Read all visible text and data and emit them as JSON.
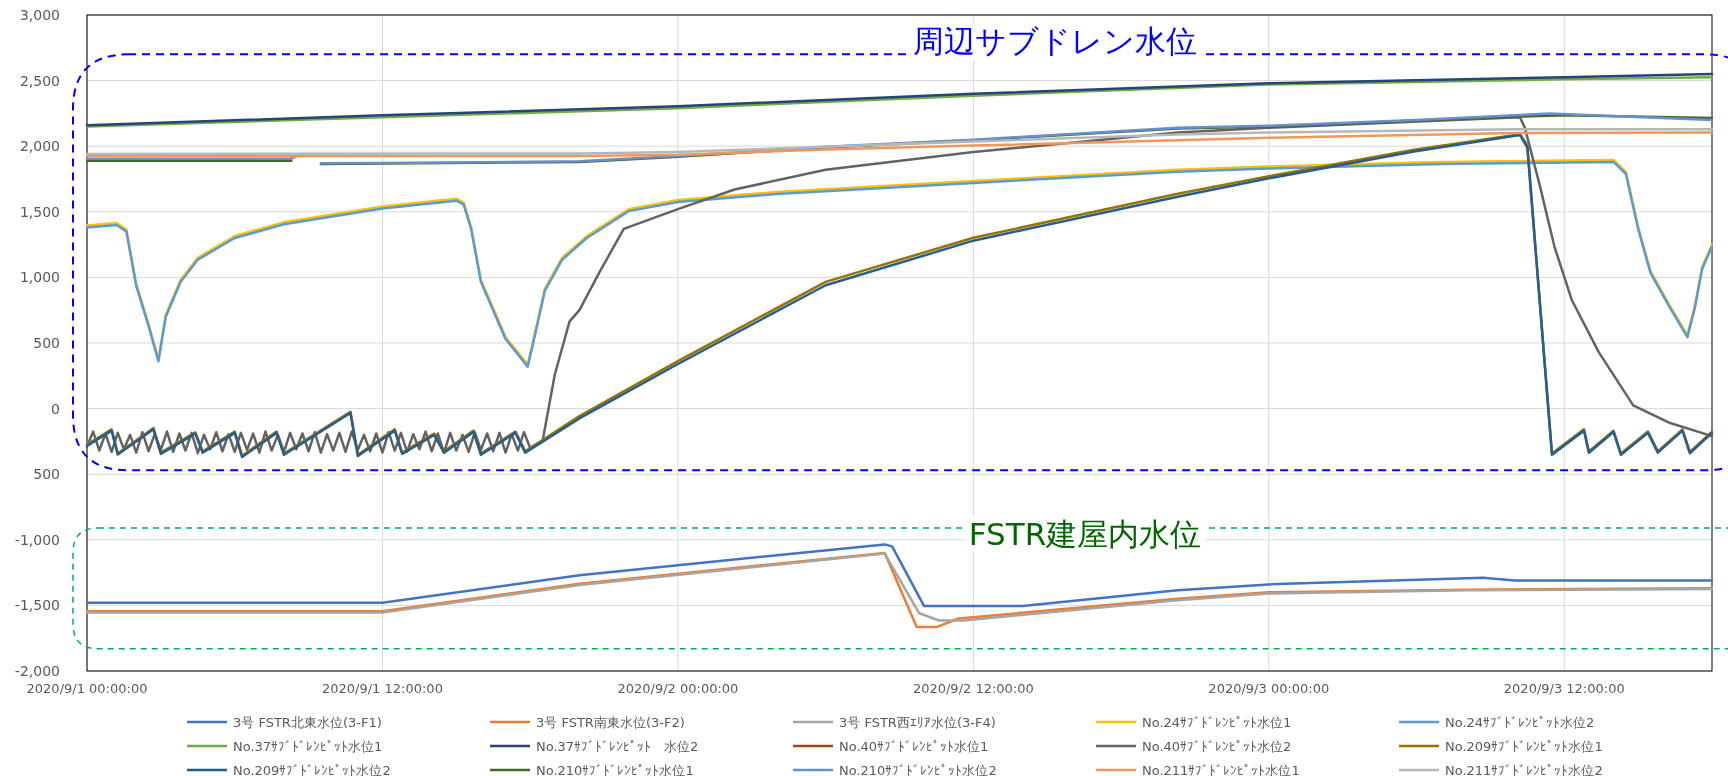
{
  "chart_data": {
    "type": "line",
    "xlim": [
      "2020-09-01T00:00",
      "2020-09-03T18:00"
    ],
    "ylim": [
      -2000,
      3000
    ],
    "xticks": [
      {
        "value": "2020-09-01T00:00",
        "label": "2020/9/1 00:00:00"
      },
      {
        "value": "2020-09-01T12:00",
        "label": "2020/9/1 12:00:00"
      },
      {
        "value": "2020-09-02T00:00",
        "label": "2020/9/2 00:00:00"
      },
      {
        "value": "2020-09-02T12:00",
        "label": "2020/9/2 12:00:00"
      },
      {
        "value": "2020-09-03T00:00",
        "label": "2020/9/3 00:00:00"
      },
      {
        "value": "2020-09-03T12:00",
        "label": "2020/9/3 12:00:00"
      }
    ],
    "yticks": [
      {
        "value": 3000,
        "label": "3,000"
      },
      {
        "value": 2500,
        "label": "2,500"
      },
      {
        "value": 2000,
        "label": "2,000"
      },
      {
        "value": 1500,
        "label": "1,500"
      },
      {
        "value": 1000,
        "label": "1,000"
      },
      {
        "value": 500,
        "label": "500"
      },
      0,
      {
        "value": -500,
        "label": "500"
      },
      {
        "value": -1000,
        "label": "-1,000"
      },
      {
        "value": -1500,
        "label": "-1,500"
      },
      {
        "value": -2000,
        "label": "-2,000"
      }
    ],
    "grid": true,
    "legend": "bottom",
    "annotations": [
      "周辺サブドレン水位",
      "FSTR建屋内水位"
    ],
    "series": [
      {
        "name": "3号 FSTR北東水位(3-F1)",
        "color": "#4472c4",
        "x": [
          "2020-09-01T00:00",
          "2020-09-01T12:00",
          "2020-09-01T20:00",
          "2020-09-02T08:24",
          "2020-09-02T08:42",
          "2020-09-02T10:00",
          "2020-09-02T14:00",
          "2020-09-02T20:18",
          "2020-09-03T00:00",
          "2020-09-03T08:42",
          "2020-09-03T10:00",
          "2020-09-03T18:00"
        ],
        "values": [
          -1480,
          -1480,
          -1270,
          -1035,
          -1050,
          -1505,
          -1505,
          -1385,
          -1340,
          -1290,
          -1310,
          -1310
        ]
      },
      {
        "name": "3号 FSTR南東水位(3-F2)",
        "color": "#ed7d31",
        "x": [
          "2020-09-01T00:00",
          "2020-09-01T12:00",
          "2020-09-01T20:00",
          "2020-09-02T08:24",
          "2020-09-02T09:42",
          "2020-09-02T10:30",
          "2020-09-02T11:24",
          "2020-09-02T20:18",
          "2020-09-03T00:00",
          "2020-09-03T08:00",
          "2020-09-03T18:00"
        ],
        "values": [
          -1545,
          -1545,
          -1335,
          -1100,
          -1665,
          -1665,
          -1600,
          -1450,
          -1400,
          -1380,
          -1370
        ]
      },
      {
        "name": "3号 FSTR西ｴﾘｱ水位(3-F4)",
        "color": "#a5a5a5",
        "x": [
          "2020-09-01T00:00",
          "2020-09-01T12:00",
          "2020-09-01T20:00",
          "2020-09-02T08:24",
          "2020-09-02T09:48",
          "2020-09-02T10:36",
          "2020-09-02T11:36",
          "2020-09-02T20:18",
          "2020-09-03T00:00",
          "2020-09-03T08:00",
          "2020-09-03T18:00"
        ],
        "values": [
          -1555,
          -1555,
          -1345,
          -1105,
          -1560,
          -1615,
          -1615,
          -1460,
          -1410,
          -1385,
          -1375
        ]
      },
      {
        "name": "No.24ｻﾌﾞﾄﾞﾚﾝﾋﾟｯﾄ水位1",
        "color": "#ffc000",
        "x": [
          "2020-09-01T00:00",
          "2020-09-01T01:12",
          "2020-09-01T01:36",
          "2020-09-01T02:00",
          "2020-09-01T02:30",
          "2020-09-01T02:54",
          "2020-09-01T03:12",
          "2020-09-01T03:48",
          "2020-09-01T04:30",
          "2020-09-01T06:00",
          "2020-09-01T08:00",
          "2020-09-01T12:00",
          "2020-09-01T15:00",
          "2020-09-01T15:18",
          "2020-09-01T15:36",
          "2020-09-01T16:00",
          "2020-09-01T17:00",
          "2020-09-01T17:54",
          "2020-09-01T18:12",
          "2020-09-01T18:36",
          "2020-09-01T19:18",
          "2020-09-01T20:18",
          "2020-09-01T22:00",
          "2020-09-02T00:00",
          "2020-09-02T04:00",
          "2020-09-02T12:00",
          "2020-09-02T20:18",
          "2020-09-03T00:00",
          "2020-09-03T07:00",
          "2020-09-03T14:00",
          "2020-09-03T14:30",
          "2020-09-03T15:00",
          "2020-09-03T15:30",
          "2020-09-03T16:18",
          "2020-09-03T17:00",
          "2020-09-03T17:18",
          "2020-09-03T17:36",
          "2020-09-03T18:00"
        ],
        "values": [
          1395,
          1415,
          1365,
          950,
          645,
          375,
          715,
          980,
          1150,
          1315,
          1420,
          1540,
          1600,
          1570,
          1385,
          980,
          545,
          335,
          580,
          915,
          1150,
          1315,
          1520,
          1590,
          1650,
          1735,
          1820,
          1845,
          1880,
          1895,
          1805,
          1385,
          1050,
          780,
          560,
          780,
          1080,
          1250
        ]
      },
      {
        "name": "No.24ｻﾌﾞﾄﾞﾚﾝﾋﾟｯﾄ水位2",
        "color": "#5b9bd5",
        "x": [
          "2020-09-01T00:00",
          "2020-09-01T01:12",
          "2020-09-01T01:36",
          "2020-09-01T02:00",
          "2020-09-01T02:30",
          "2020-09-01T02:54",
          "2020-09-01T03:12",
          "2020-09-01T03:48",
          "2020-09-01T04:30",
          "2020-09-01T06:00",
          "2020-09-01T08:00",
          "2020-09-01T12:00",
          "2020-09-01T15:00",
          "2020-09-01T15:18",
          "2020-09-01T15:36",
          "2020-09-01T16:00",
          "2020-09-01T17:00",
          "2020-09-01T17:54",
          "2020-09-01T18:12",
          "2020-09-01T18:36",
          "2020-09-01T19:18",
          "2020-09-01T20:18",
          "2020-09-01T22:00",
          "2020-09-02T00:00",
          "2020-09-02T04:00",
          "2020-09-02T12:00",
          "2020-09-02T20:18",
          "2020-09-03T00:00",
          "2020-09-03T07:00",
          "2020-09-03T14:00",
          "2020-09-03T14:30",
          "2020-09-03T15:00",
          "2020-09-03T15:30",
          "2020-09-03T16:18",
          "2020-09-03T17:00",
          "2020-09-03T17:18",
          "2020-09-03T17:36",
          "2020-09-03T18:00"
        ],
        "values": [
          1380,
          1400,
          1350,
          935,
          630,
          360,
          700,
          965,
          1135,
          1300,
          1405,
          1525,
          1585,
          1555,
          1370,
          965,
          530,
          320,
          565,
          900,
          1135,
          1300,
          1505,
          1575,
          1635,
          1720,
          1805,
          1830,
          1865,
          1880,
          1790,
          1370,
          1035,
          765,
          545,
          765,
          1065,
          1235
        ]
      },
      {
        "name": "No.37ｻﾌﾞﾄﾞﾚﾝﾋﾟｯﾄ水位1",
        "color": "#70ad47",
        "x": [
          "2020-09-01T00:00",
          "2020-09-01T12:00",
          "2020-09-02T00:00",
          "2020-09-02T12:00",
          "2020-09-03T00:00",
          "2020-09-03T12:00",
          "2020-09-03T18:00"
        ],
        "values": [
          2150,
          2220,
          2290,
          2385,
          2470,
          2510,
          2525
        ]
      },
      {
        "name": "No.37ｻﾌﾞﾄﾞﾚﾝﾋﾟｯﾄ　水位2",
        "color": "#264478",
        "x": [
          "2020-09-01T00:00",
          "2020-09-01T12:00",
          "2020-09-02T00:00",
          "2020-09-02T12:00",
          "2020-09-03T00:00",
          "2020-09-03T12:00",
          "2020-09-03T18:00"
        ],
        "values": [
          2160,
          2235,
          2305,
          2400,
          2480,
          2525,
          2550
        ]
      },
      {
        "name": "No.40ｻﾌﾞﾄﾞﾚﾝﾋﾟｯﾄ水位1",
        "color": "#9e480e"
      },
      {
        "name": "No.40ｻﾌﾞﾄﾞﾚﾝﾋﾟｯﾄ水位2",
        "color": "#636363",
        "x": [
          "2020-09-01T00:00",
          "2020-09-01T00:15",
          "2020-09-01T00:30",
          "2020-09-01T00:45",
          "2020-09-01T01:00",
          "2020-09-01T01:15",
          "2020-09-01T01:30",
          "2020-09-01T01:45",
          "2020-09-01T02:00",
          "2020-09-01T02:15",
          "2020-09-01T02:30",
          "2020-09-01T02:45",
          "2020-09-01T03:00",
          "2020-09-01T03:15",
          "2020-09-01T03:30",
          "2020-09-01T03:45",
          "2020-09-01T04:00",
          "2020-09-01T04:15",
          "2020-09-01T04:30",
          "2020-09-01T04:45",
          "2020-09-01T05:00",
          "2020-09-01T05:15",
          "2020-09-01T05:30",
          "2020-09-01T05:45",
          "2020-09-01T06:00",
          "2020-09-01T06:15",
          "2020-09-01T06:30",
          "2020-09-01T06:45",
          "2020-09-01T07:00",
          "2020-09-01T07:15",
          "2020-09-01T07:30",
          "2020-09-01T07:45",
          "2020-09-01T08:00",
          "2020-09-01T08:15",
          "2020-09-01T08:30",
          "2020-09-01T08:45",
          "2020-09-01T09:00",
          "2020-09-01T09:15",
          "2020-09-01T09:30",
          "2020-09-01T09:45",
          "2020-09-01T10:00",
          "2020-09-01T10:15",
          "2020-09-01T10:30",
          "2020-09-01T10:45",
          "2020-09-01T11:00",
          "2020-09-01T11:15",
          "2020-09-01T11:30",
          "2020-09-01T11:45",
          "2020-09-01T12:00",
          "2020-09-01T12:15",
          "2020-09-01T12:30",
          "2020-09-01T12:45",
          "2020-09-01T13:00",
          "2020-09-01T13:15",
          "2020-09-01T13:30",
          "2020-09-01T13:45",
          "2020-09-01T14:00",
          "2020-09-01T14:15",
          "2020-09-01T14:30",
          "2020-09-01T14:45",
          "2020-09-01T15:00",
          "2020-09-01T15:15",
          "2020-09-01T15:30",
          "2020-09-01T15:45",
          "2020-09-01T16:00",
          "2020-09-01T16:15",
          "2020-09-01T16:30",
          "2020-09-01T16:45",
          "2020-09-01T17:00",
          "2020-09-01T17:15",
          "2020-09-01T17:30",
          "2020-09-01T17:45",
          "2020-09-01T18:00",
          "2020-09-01T18:15",
          "2020-09-01T18:30",
          "2020-09-01T19:00",
          "2020-09-01T19:36",
          "2020-09-01T20:00",
          "2020-09-01T20:48",
          "2020-09-01T21:48",
          "2020-09-02T00:00",
          "2020-09-02T02:18",
          "2020-09-02T06:00",
          "2020-09-02T12:00",
          "2020-09-02T20:18",
          "2020-09-03T00:00",
          "2020-09-03T10:12",
          "2020-09-03T10:24",
          "2020-09-03T11:00",
          "2020-09-03T11:36",
          "2020-09-03T12:18",
          "2020-09-03T13:24",
          "2020-09-03T14:48",
          "2020-09-03T16:18",
          "2020-09-03T18:00"
        ],
        "values": [
          -290,
          -175,
          -320,
          -190,
          -330,
          -185,
          -310,
          -200,
          -335,
          -180,
          -325,
          -195,
          -315,
          -175,
          -330,
          -190,
          -320,
          -185,
          -340,
          -200,
          -310,
          -180,
          -325,
          -195,
          -330,
          -185,
          -315,
          -190,
          -335,
          -175,
          -320,
          -200,
          -330,
          -185,
          -310,
          -190,
          -325,
          -180,
          -335,
          -195,
          -320,
          -185,
          -330,
          -175,
          -315,
          -200,
          -325,
          -190,
          -335,
          -180,
          -320,
          -185,
          -330,
          -195,
          -310,
          -175,
          -325,
          -190,
          -335,
          -185,
          -320,
          -200,
          -330,
          -180,
          -315,
          -190,
          -325,
          -185,
          -335,
          -195,
          -320,
          -180,
          -300,
          -270,
          -250,
          260,
          665,
          750,
          1035,
          1370,
          1520,
          1670,
          1820,
          1955,
          2105,
          2140,
          2220,
          2140,
          1705,
          1235,
          830,
          430,
          25,
          -110,
          -210
        ]
      },
      {
        "name": "No.209ｻﾌﾞﾄﾞﾚﾝﾋﾟｯﾄ水位1",
        "color": "#997300",
        "x": [
          "2020-09-01T00:00",
          "2020-09-01T01:00",
          "2020-09-01T01:15",
          "2020-09-01T02:42",
          "2020-09-01T03:00",
          "2020-09-01T04:24",
          "2020-09-01T04:42",
          "2020-09-01T06:00",
          "2020-09-01T06:18",
          "2020-09-01T07:42",
          "2020-09-01T08:00",
          "2020-09-01T10:42",
          "2020-09-01T11:00",
          "2020-09-01T12:30",
          "2020-09-01T12:48",
          "2020-09-01T14:06",
          "2020-09-01T14:30",
          "2020-09-01T15:42",
          "2020-09-01T16:00",
          "2020-09-01T17:24",
          "2020-09-01T17:48",
          "2020-09-01T20:00",
          "2020-09-02T00:00",
          "2020-09-02T06:00",
          "2020-09-02T12:00",
          "2020-09-02T20:18",
          "2020-09-03T00:00",
          "2020-09-03T05:54",
          "2020-09-03T10:12",
          "2020-09-03T10:30",
          "2020-09-03T11:30",
          "2020-09-03T12:48",
          "2020-09-03T13:00",
          "2020-09-03T14:00",
          "2020-09-03T14:18",
          "2020-09-03T15:24",
          "2020-09-03T15:48",
          "2020-09-03T16:48",
          "2020-09-03T17:06",
          "2020-09-03T18:00"
        ],
        "values": [
          -275,
          -158,
          -342,
          -148,
          -335,
          -181,
          -326,
          -175,
          -359,
          -175,
          -342,
          -24,
          -352,
          -158,
          -335,
          -191,
          -326,
          -168,
          -342,
          -175,
          -326,
          -57,
          362,
          966,
          1302,
          1637,
          1772,
          1973,
          2091,
          2007,
          -342,
          -158,
          -326,
          -168,
          -342,
          -175,
          -326,
          -158,
          -330,
          -175
        ]
      },
      {
        "name": "No.209ｻﾌﾞﾄﾞﾚﾝﾋﾟｯﾄ水位2",
        "color": "#255e91",
        "x": [
          "2020-09-01T00:00",
          "2020-09-01T01:00",
          "2020-09-01T01:15",
          "2020-09-01T02:42",
          "2020-09-01T03:00",
          "2020-09-01T04:24",
          "2020-09-01T04:42",
          "2020-09-01T06:00",
          "2020-09-01T06:18",
          "2020-09-01T07:42",
          "2020-09-01T08:00",
          "2020-09-01T10:42",
          "2020-09-01T11:00",
          "2020-09-01T12:30",
          "2020-09-01T12:48",
          "2020-09-01T14:06",
          "2020-09-01T14:30",
          "2020-09-01T15:42",
          "2020-09-01T16:00",
          "2020-09-01T17:24",
          "2020-09-01T17:48",
          "2020-09-01T20:00",
          "2020-09-02T00:00",
          "2020-09-02T06:00",
          "2020-09-02T12:00",
          "2020-09-02T20:18",
          "2020-09-03T00:00",
          "2020-09-03T05:54",
          "2020-09-03T10:12",
          "2020-09-03T10:30",
          "2020-09-03T11:30",
          "2020-09-03T12:48",
          "2020-09-03T13:00",
          "2020-09-03T14:00",
          "2020-09-03T14:18",
          "2020-09-03T15:24",
          "2020-09-03T15:48",
          "2020-09-03T16:48",
          "2020-09-03T17:06",
          "2020-09-03T18:00"
        ],
        "values": [
          -285,
          -168,
          -350,
          -158,
          -345,
          -191,
          -336,
          -185,
          -369,
          -185,
          -352,
          -34,
          -362,
          -168,
          -345,
          -201,
          -336,
          -178,
          -352,
          -185,
          -336,
          -75,
          340,
          940,
          1280,
          1615,
          1755,
          1960,
          2085,
          1990,
          -352,
          -168,
          -336,
          -178,
          -352,
          -185,
          -336,
          -168,
          -340,
          -185
        ]
      },
      {
        "name": "No.210ｻﾌﾞﾄﾞﾚﾝﾋﾟｯﾄ水位1",
        "color": "#43682b",
        "x": [
          "2020-09-01T00:00",
          "2020-09-01T08:18",
          "2020-09-01T08:54",
          "2020-09-01T09:30",
          "2020-09-01T12:00",
          "2020-09-01T20:00",
          "2020-09-02T00:00",
          "2020-09-02T06:00",
          "2020-09-02T12:00",
          "2020-09-02T20:18",
          "2020-09-03T00:00",
          "2020-09-03T06:00",
          "2020-09-03T10:00",
          "2020-09-03T12:00",
          "2020-09-03T18:00"
        ],
        "values": [
          1890,
          1890,
          null,
          1865,
          1868,
          1880,
          1920,
          1990,
          2045,
          2135,
          2150,
          2195,
          2225,
          2235,
          2215
        ]
      },
      {
        "name": "No.210ｻﾌﾞﾄﾞﾚﾝﾋﾟｯﾄ水位2",
        "color": "#698ed0",
        "x": [
          "2020-09-01T00:00",
          "2020-09-01T08:18",
          "2020-09-01T08:30",
          "2020-09-01T08:54",
          "2020-09-01T09:30",
          "2020-09-01T12:00",
          "2020-09-01T20:00",
          "2020-09-02T00:00",
          "2020-09-02T06:00",
          "2020-09-02T12:00",
          "2020-09-02T20:18",
          "2020-09-03T00:00",
          "2020-09-03T06:00",
          "2020-09-03T10:00",
          "2020-09-03T11:24",
          "2020-09-03T18:00"
        ],
        "values": [
          1905,
          1905,
          1925,
          null,
          1870,
          1872,
          1885,
          1925,
          1995,
          2050,
          2140,
          2155,
          2200,
          2235,
          2250,
          2200
        ]
      },
      {
        "name": "No.211ｻﾌﾞﾄﾞﾚﾝﾋﾟｯﾄ水位1",
        "color": "#f1975a",
        "x": [
          "2020-09-01T00:00",
          "2020-09-01T20:00",
          "2020-09-02T00:00",
          "2020-09-02T06:00",
          "2020-09-02T12:00",
          "2020-09-02T20:18",
          "2020-09-03T00:00",
          "2020-09-03T10:00",
          "2020-09-03T18:00"
        ],
        "values": [
          1925,
          1925,
          1935,
          1975,
          2005,
          2045,
          2065,
          2100,
          2105
        ]
      },
      {
        "name": "No.211ｻﾌﾞﾄﾞﾚﾝﾋﾟｯﾄ水位2",
        "color": "#b7b7b7",
        "x": [
          "2020-09-01T00:00",
          "2020-09-01T20:00",
          "2020-09-02T00:00",
          "2020-09-02T06:00",
          "2020-09-02T12:00",
          "2020-09-02T20:18",
          "2020-09-03T00:00",
          "2020-09-03T10:00",
          "2020-09-03T18:00"
        ],
        "values": [
          1940,
          1945,
          1955,
          1995,
          2035,
          2090,
          2105,
          2130,
          2130
        ]
      }
    ]
  }
}
